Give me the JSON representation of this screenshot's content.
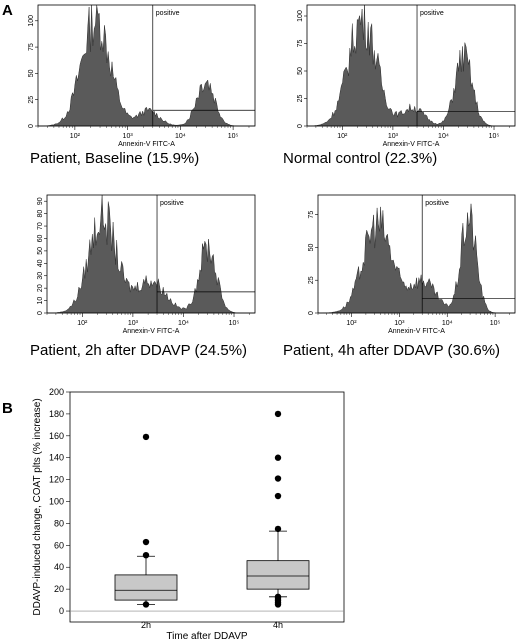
{
  "panel_a_label": "A",
  "panel_b_label": "B",
  "chart_data": [
    {
      "type": "area",
      "caption": "Patient, Baseline (15.9%)",
      "gate_label": "positive",
      "xlabel": "Annexin-V FITC-A",
      "xscale": "log",
      "xlim": [
        20,
        260000
      ],
      "ylim": [
        0,
        115
      ],
      "yticks": [
        0,
        25,
        50,
        75,
        100
      ],
      "xticks": [
        "10²",
        "10³",
        "10⁴",
        "10⁵"
      ],
      "peaks": [
        {
          "center": 250,
          "height": 105,
          "width": 0.27
        },
        {
          "center": 2500,
          "height": 15,
          "width": 0.2
        },
        {
          "center": 30000,
          "height": 45,
          "width": 0.17
        }
      ],
      "gate": {
        "x": 3000,
        "marker_y": 15
      }
    },
    {
      "type": "area",
      "caption": "Normal control (22.3%)",
      "gate_label": "positive",
      "xlabel": "Annexin-V FITC-A",
      "xscale": "log",
      "xlim": [
        20,
        260000
      ],
      "ylim": [
        0,
        110
      ],
      "yticks": [
        0,
        25,
        50,
        75,
        100
      ],
      "xticks": [
        "10²",
        "10³",
        "10⁴",
        "10⁵"
      ],
      "peaks": [
        {
          "center": 250,
          "height": 100,
          "width": 0.28
        },
        {
          "center": 2500,
          "height": 17,
          "width": 0.22
        },
        {
          "center": 25000,
          "height": 65,
          "width": 0.17
        }
      ],
      "gate": {
        "x": 3000,
        "marker_y": 13
      }
    },
    {
      "type": "area",
      "caption": "Patient, 2h after DDAVP (24.5%)",
      "gate_label": "positive",
      "xlabel": "Annexin-V FITC-A",
      "xscale": "log",
      "xlim": [
        20,
        260000
      ],
      "ylim": [
        0,
        95
      ],
      "yticks": [
        0,
        10,
        20,
        30,
        40,
        50,
        60,
        70,
        80,
        90
      ],
      "xticks": [
        "10²",
        "10³",
        "10⁴",
        "10⁵"
      ],
      "peaks": [
        {
          "center": 250,
          "height": 80,
          "width": 0.27
        },
        {
          "center": 2200,
          "height": 27,
          "width": 0.3
        },
        {
          "center": 30000,
          "height": 55,
          "width": 0.17
        }
      ],
      "gate": {
        "x": 3000,
        "marker_y": 17
      }
    },
    {
      "type": "area",
      "caption": "Patient, 4h after DDAVP (30.6%)",
      "gate_label": "positive",
      "xlabel": "Annexin-V FITC-A",
      "xscale": "log",
      "xlim": [
        20,
        260000
      ],
      "ylim": [
        0,
        90
      ],
      "yticks": [
        0,
        25,
        50,
        75
      ],
      "xticks": [
        "10²",
        "10³",
        "10⁴",
        "10⁵"
      ],
      "peaks": [
        {
          "center": 350,
          "height": 70,
          "width": 0.3
        },
        {
          "center": 3000,
          "height": 25,
          "width": 0.28
        },
        {
          "center": 28000,
          "height": 75,
          "width": 0.16
        }
      ],
      "gate": {
        "x": 3000,
        "marker_y": 11
      }
    },
    {
      "type": "box",
      "ylabel": "DDAVP-induced change,  COAT plts   (% increase)",
      "xlabel": "Time after DDAVP",
      "categories": [
        "2h",
        "4h"
      ],
      "ylim": [
        -10,
        200
      ],
      "yticks": [
        0,
        20,
        40,
        60,
        80,
        100,
        120,
        140,
        160,
        180,
        200
      ],
      "boxes": [
        {
          "q1": 10,
          "median": 19,
          "q3": 33,
          "whisker_low": 6,
          "whisker_high": 50,
          "outliers": [
            6,
            51,
            63,
            159
          ]
        },
        {
          "q1": 20,
          "median": 32,
          "q3": 46,
          "whisker_low": 13,
          "whisker_high": 73,
          "outliers": [
            6,
            8,
            10,
            12,
            13,
            75,
            105,
            121,
            140,
            180
          ]
        }
      ]
    }
  ]
}
